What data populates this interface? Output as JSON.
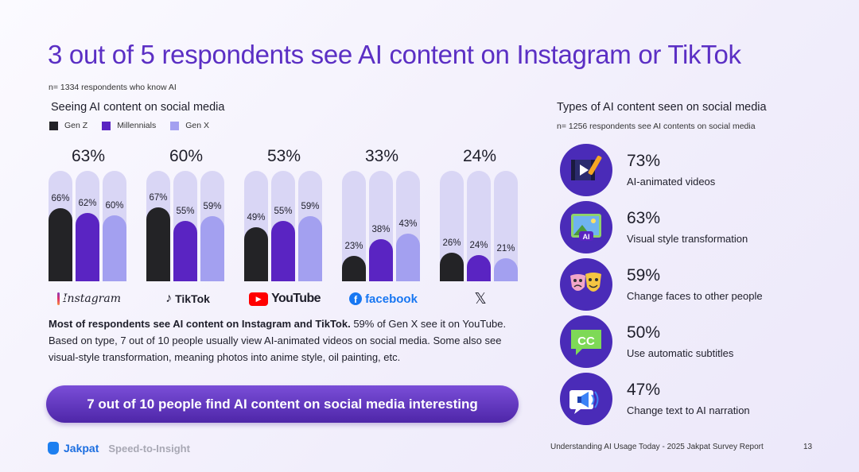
{
  "title": "3 out of 5 respondents see AI content on Instagram or TikTok",
  "sample_note": "n= 1334 respondents who know AI",
  "left_chart": {
    "section_title": "Seeing AI content on social media",
    "legend": [
      {
        "label": "Gen Z",
        "color": "#232326"
      },
      {
        "label": "Millennials",
        "color": "#5a24c2"
      },
      {
        "label": "Gen X",
        "color": "#a3a0f0"
      }
    ],
    "platforms": [
      {
        "name": "Instagram",
        "logo_text": "Instagram",
        "total": "63%",
        "values_text": [
          "66%",
          "62%",
          "60%"
        ]
      },
      {
        "name": "TikTok",
        "logo_text": "TikTok",
        "total": "60%",
        "values_text": [
          "67%",
          "55%",
          "59%"
        ]
      },
      {
        "name": "YouTube",
        "logo_text": "YouTube",
        "total": "53%",
        "values_text": [
          "49%",
          "55%",
          "59%"
        ]
      },
      {
        "name": "facebook",
        "logo_text": "facebook",
        "total": "33%",
        "values_text": [
          "23%",
          "38%",
          "43%"
        ]
      },
      {
        "name": "X",
        "logo_text": "𝕏",
        "total": "24%",
        "values_text": [
          "26%",
          "24%",
          "21%"
        ]
      }
    ]
  },
  "chart_data": {
    "type": "bar",
    "title": "Seeing AI content on social media",
    "categories": [
      "Instagram",
      "TikTok",
      "YouTube",
      "facebook",
      "X"
    ],
    "totals": [
      63,
      60,
      53,
      33,
      24
    ],
    "series": [
      {
        "name": "Gen Z",
        "values": [
          66,
          67,
          49,
          23,
          26
        ]
      },
      {
        "name": "Millennials",
        "values": [
          62,
          55,
          55,
          38,
          24
        ]
      },
      {
        "name": "Gen X",
        "values": [
          60,
          59,
          59,
          43,
          21
        ]
      }
    ],
    "unit": "%",
    "ylim": [
      0,
      100
    ],
    "legend": "top-left"
  },
  "body_text": {
    "bold": "Most of respondents see AI content on Instagram and TikTok.",
    "rest": " 59% of Gen X see it on YouTube. Based on type, 7 out of 10 people usually view AI-animated videos on social media. Some also see visual-style transformation, meaning photos into anime style, oil painting, etc."
  },
  "banner": "7 out of 10 people find AI content on social media interesting",
  "right_panel": {
    "section_title": "Types of AI content seen on social media",
    "sample_note": "n= 1256 respondents see AI contents on social media",
    "items": [
      {
        "pct": "73%",
        "label": "AI-animated videos",
        "icon": "film-pen-icon"
      },
      {
        "pct": "63%",
        "label": "Visual style transformation",
        "icon": "ai-image-icon"
      },
      {
        "pct": "59%",
        "label": "Change faces to other people",
        "icon": "theater-masks-icon"
      },
      {
        "pct": "50%",
        "label": "Use automatic subtitles",
        "icon": "closed-caption-icon"
      },
      {
        "pct": "47%",
        "label": "Change text to AI narration",
        "icon": "megaphone-icon"
      }
    ]
  },
  "footer": {
    "brand": "Jakpat",
    "tagline": "Speed-to-Insight",
    "report": "Understanding AI Usage Today - 2025 Jakpat Survey Report",
    "page": "13"
  }
}
